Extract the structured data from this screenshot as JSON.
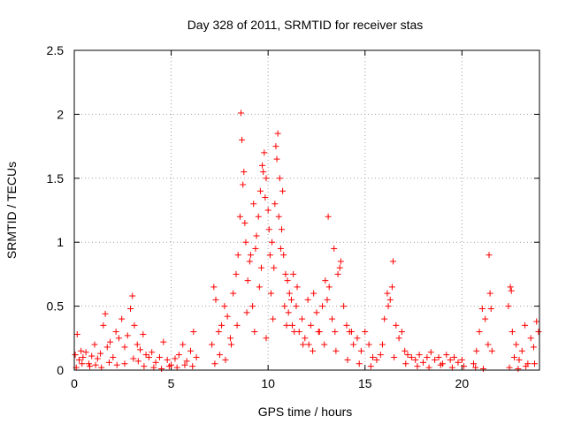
{
  "chart_data": {
    "type": "scatter",
    "title": "Day 328 of 2011, SRMTID for receiver stas",
    "xlabel": "GPS time / hours",
    "ylabel": "SRMTID / TECUs",
    "xlim": [
      0,
      24
    ],
    "ylim": [
      0,
      2.5
    ],
    "xticks": [
      0,
      5,
      10,
      15,
      20
    ],
    "xtick_labels": [
      "0",
      "5",
      "10",
      "15",
      "20"
    ],
    "yticks": [
      0,
      0.5,
      1,
      1.5,
      2,
      2.5
    ],
    "ytick_labels": [
      "0",
      "0.5",
      "1",
      "1.5",
      "2",
      "2.5"
    ],
    "grid": true,
    "marker": "+",
    "colors": {
      "points": "#ff0000",
      "axes": "#000000",
      "grid": "#a0a0a0"
    },
    "series": [
      {
        "name": "stas",
        "x": [
          0.05,
          0.15,
          0.25,
          0.35,
          0.45,
          0.6,
          0.75,
          0.9,
          1.05,
          1.2,
          1.35,
          1.5,
          1.6,
          1.7,
          1.85,
          2.0,
          2.15,
          2.3,
          2.45,
          2.6,
          2.75,
          2.9,
          3.0,
          3.1,
          3.25,
          3.4,
          3.55,
          3.7,
          3.85,
          4.0,
          4.2,
          4.4,
          4.6,
          4.8,
          5.0,
          5.2,
          5.4,
          5.6,
          5.8,
          6.0,
          6.15,
          6.3,
          7.1,
          7.2,
          7.3,
          7.45,
          7.6,
          7.75,
          7.9,
          8.05,
          8.2,
          8.35,
          8.45,
          8.55,
          8.65,
          8.75,
          8.85,
          8.95,
          9.05,
          9.2,
          9.35,
          9.5,
          9.6,
          9.7,
          9.8,
          9.9,
          10.0,
          10.1,
          10.2,
          10.3,
          10.4,
          10.5,
          10.6,
          10.7,
          10.8,
          10.9,
          11.0,
          11.1,
          11.2,
          11.3,
          11.45,
          11.6,
          11.75,
          11.9,
          12.05,
          12.2,
          12.35,
          12.5,
          12.65,
          12.8,
          12.95,
          13.05,
          13.15,
          13.3,
          13.45,
          13.6,
          13.75,
          13.9,
          14.05,
          14.2,
          14.4,
          14.6,
          14.8,
          15.0,
          15.2,
          15.4,
          15.6,
          15.8,
          16.0,
          16.15,
          16.3,
          16.45,
          16.6,
          16.75,
          16.9,
          17.05,
          17.2,
          17.4,
          17.6,
          17.8,
          18.0,
          18.2,
          18.4,
          18.6,
          18.8,
          19.0,
          19.2,
          19.4,
          19.6,
          19.8,
          20.0,
          20.6,
          20.75,
          20.9,
          21.05,
          21.2,
          21.35,
          21.45,
          21.55,
          22.4,
          22.5,
          22.6,
          22.7,
          22.8,
          22.95,
          23.1,
          23.25,
          23.4,
          23.55,
          23.7,
          23.85,
          23.95,
          8.6,
          8.7,
          8.8,
          9.1,
          9.25,
          9.4,
          9.55,
          9.65,
          9.75,
          9.85,
          10.05,
          10.15,
          10.35,
          10.45,
          10.55,
          10.65,
          10.75,
          10.85,
          11.05,
          11.25,
          11.5,
          12.1,
          12.6,
          13.1,
          13.4,
          13.7,
          14.3,
          16.2,
          16.4,
          21.4,
          21.5,
          22.55,
          0.1,
          0.4,
          0.8,
          1.1,
          1.4,
          1.8,
          2.2,
          2.6,
          3.05,
          3.3,
          3.6,
          4.1,
          4.5,
          4.9,
          5.3,
          5.7,
          6.1,
          7.25,
          7.5,
          7.8,
          8.1,
          8.4,
          8.9,
          9.3,
          9.9,
          10.25,
          10.95,
          11.35,
          11.8,
          12.3,
          12.9,
          13.5,
          14.1,
          14.7,
          15.3,
          15.9,
          16.5,
          17.1,
          17.7,
          18.3,
          18.9,
          19.5,
          20.1,
          20.7,
          21.1,
          22.45,
          22.9,
          23.3,
          23.75
        ],
        "y": [
          0.12,
          0.28,
          0.08,
          0.15,
          0.1,
          0.14,
          0.05,
          0.11,
          0.2,
          0.09,
          0.13,
          0.35,
          0.44,
          0.18,
          0.22,
          0.1,
          0.3,
          0.25,
          0.4,
          0.18,
          0.27,
          0.48,
          0.58,
          0.35,
          0.2,
          0.16,
          0.28,
          0.12,
          0.1,
          0.14,
          0.06,
          0.1,
          0.22,
          0.08,
          0.04,
          0.09,
          0.12,
          0.2,
          0.07,
          0.15,
          0.3,
          0.1,
          0.2,
          0.65,
          0.55,
          0.3,
          0.35,
          0.5,
          0.42,
          0.25,
          0.6,
          0.75,
          0.9,
          1.2,
          1.8,
          1.55,
          1.0,
          0.7,
          0.85,
          0.5,
          0.95,
          1.2,
          1.4,
          1.6,
          1.7,
          1.5,
          1.25,
          0.9,
          1.0,
          0.8,
          1.75,
          1.85,
          1.5,
          1.1,
          0.9,
          0.75,
          0.7,
          0.6,
          0.55,
          0.75,
          0.5,
          0.3,
          0.4,
          0.25,
          0.55,
          0.35,
          0.6,
          0.45,
          0.3,
          0.5,
          0.7,
          0.55,
          0.65,
          0.4,
          0.3,
          0.75,
          0.85,
          0.5,
          0.35,
          0.3,
          0.2,
          0.25,
          0.15,
          0.3,
          0.2,
          0.1,
          0.08,
          0.12,
          0.4,
          0.6,
          0.55,
          0.85,
          0.35,
          0.25,
          0.3,
          0.15,
          0.12,
          0.1,
          0.08,
          0.12,
          0.06,
          0.1,
          0.14,
          0.08,
          0.1,
          0.05,
          0.12,
          0.08,
          0.1,
          0.06,
          0.08,
          0.05,
          0.15,
          0.3,
          0.48,
          0.4,
          0.2,
          0.6,
          0.15,
          0.5,
          0.65,
          0.3,
          0.1,
          0.2,
          0.08,
          0.15,
          0.35,
          0.05,
          0.25,
          0.18,
          0.38,
          0.3,
          2.01,
          1.45,
          1.15,
          0.9,
          1.3,
          1.05,
          0.65,
          0.8,
          1.55,
          1.35,
          1.1,
          0.6,
          1.3,
          1.65,
          1.2,
          0.95,
          1.4,
          0.5,
          0.45,
          0.35,
          0.65,
          0.2,
          0.3,
          1.2,
          0.95,
          0.8,
          0.3,
          0.5,
          0.65,
          0.9,
          0.48,
          0.62,
          0.02,
          0.05,
          0.03,
          0.04,
          0.02,
          0.06,
          0.04,
          0.05,
          0.09,
          0.07,
          0.03,
          0.02,
          0.01,
          0.03,
          0.02,
          0.04,
          0.03,
          0.05,
          0.12,
          0.08,
          0.2,
          0.35,
          0.45,
          0.3,
          0.25,
          0.4,
          0.35,
          0.3,
          0.2,
          0.15,
          0.2,
          0.15,
          0.08,
          0.05,
          0.03,
          0.2,
          0.1,
          0.05,
          0.03,
          0.02,
          0.04,
          0.02,
          0.03,
          0.02,
          0.01,
          0.02,
          0.01,
          0.03,
          0.05
        ]
      }
    ]
  }
}
